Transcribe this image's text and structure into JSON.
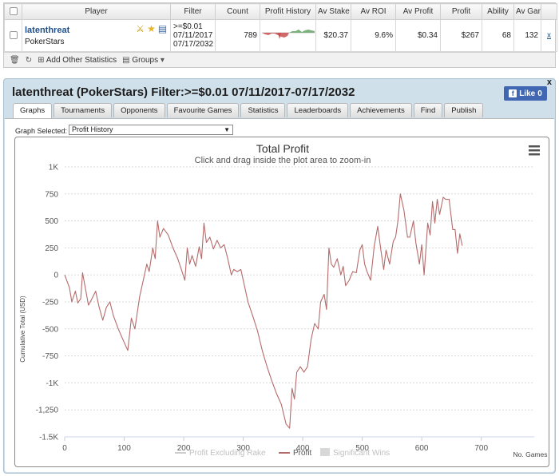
{
  "stats_table": {
    "headers": [
      "Player",
      "Filter",
      "Count",
      "Profit History",
      "Av Stake",
      "Av ROI",
      "Av Profit",
      "Profit",
      "Ability",
      "Av Game"
    ],
    "row": {
      "player_name": "latenthreat",
      "site": "PokerStars",
      "filter_lines": [
        ">=$0.01",
        "07/11/2017 -",
        "07/17/2032"
      ],
      "count": "789",
      "av_stake": "$20.37",
      "av_roi": "9.6%",
      "av_profit": "$0.34",
      "profit": "$267",
      "ability": "68",
      "av_game": "132",
      "remove_link": "x"
    },
    "footer": {
      "add_label": "Add Other Statistics",
      "groups_label": "Groups"
    }
  },
  "panel": {
    "title": "latenthreat (PokerStars) Filter:>=$0.01 07/11/2017-07/17/2032",
    "close_label": "x",
    "like_label": "Like",
    "like_count": "0",
    "tabs": [
      "Graphs",
      "Tournaments",
      "Opponents",
      "Favourite Games",
      "Statistics",
      "Leaderboards",
      "Achievements",
      "Find",
      "Publish"
    ],
    "active_tab": "Graphs",
    "graph_selected_label": "Graph Selected:",
    "graph_selected_value": "Profit History"
  },
  "colors": {
    "profit_line": "#b56b6b",
    "positive_spark": "#6ea96e",
    "negative_spark": "#c85050",
    "panel_bg": "#cfe0eb"
  },
  "chart_data": {
    "type": "line",
    "title": "Total Profit",
    "subtitle": "Click and drag inside the plot area to zoom-in",
    "ylabel": "Cumulative Total (USD)",
    "xlabel": "No. Games",
    "ylim": [
      -1500,
      1000
    ],
    "xlim": [
      0,
      789
    ],
    "y_ticks": [
      {
        "v": 1000,
        "label": "1K"
      },
      {
        "v": 750,
        "label": "750"
      },
      {
        "v": 500,
        "label": "500"
      },
      {
        "v": 250,
        "label": "250"
      },
      {
        "v": 0,
        "label": "0"
      },
      {
        "v": -250,
        "label": "-250"
      },
      {
        "v": -500,
        "label": "-500"
      },
      {
        "v": -750,
        "label": "-750"
      },
      {
        "v": -1000,
        "label": "-1K"
      },
      {
        "v": -1250,
        "label": "-1,250"
      },
      {
        "v": -1500,
        "label": "-1.5K"
      }
    ],
    "x_ticks": [
      0,
      100,
      200,
      300,
      400,
      500,
      600,
      700
    ],
    "grid": true,
    "legend": [
      "Profit Excluding Rake",
      "Profit",
      "Significant Wins"
    ],
    "series": [
      {
        "name": "Profit",
        "points": [
          [
            0,
            0
          ],
          [
            8,
            -120
          ],
          [
            12,
            -250
          ],
          [
            18,
            -150
          ],
          [
            22,
            -260
          ],
          [
            27,
            -220
          ],
          [
            30,
            20
          ],
          [
            34,
            -100
          ],
          [
            40,
            -280
          ],
          [
            45,
            -230
          ],
          [
            52,
            -150
          ],
          [
            58,
            -300
          ],
          [
            64,
            -420
          ],
          [
            70,
            -300
          ],
          [
            76,
            -250
          ],
          [
            82,
            -380
          ],
          [
            90,
            -500
          ],
          [
            98,
            -600
          ],
          [
            106,
            -700
          ],
          [
            112,
            -400
          ],
          [
            118,
            -500
          ],
          [
            126,
            -200
          ],
          [
            132,
            -50
          ],
          [
            138,
            100
          ],
          [
            142,
            30
          ],
          [
            148,
            250
          ],
          [
            152,
            150
          ],
          [
            156,
            500
          ],
          [
            160,
            350
          ],
          [
            166,
            430
          ],
          [
            174,
            370
          ],
          [
            182,
            250
          ],
          [
            190,
            150
          ],
          [
            196,
            50
          ],
          [
            202,
            -50
          ],
          [
            206,
            250
          ],
          [
            210,
            100
          ],
          [
            214,
            180
          ],
          [
            220,
            80
          ],
          [
            226,
            260
          ],
          [
            230,
            150
          ],
          [
            234,
            480
          ],
          [
            238,
            300
          ],
          [
            244,
            350
          ],
          [
            250,
            240
          ],
          [
            256,
            320
          ],
          [
            262,
            250
          ],
          [
            268,
            280
          ],
          [
            274,
            150
          ],
          [
            280,
            0
          ],
          [
            284,
            50
          ],
          [
            290,
            30
          ],
          [
            296,
            50
          ],
          [
            302,
            -100
          ],
          [
            308,
            -250
          ],
          [
            316,
            -380
          ],
          [
            324,
            -520
          ],
          [
            332,
            -700
          ],
          [
            340,
            -850
          ],
          [
            348,
            -980
          ],
          [
            356,
            -1100
          ],
          [
            364,
            -1200
          ],
          [
            372,
            -1380
          ],
          [
            378,
            -1420
          ],
          [
            382,
            -1050
          ],
          [
            386,
            -1150
          ],
          [
            390,
            -900
          ],
          [
            396,
            -850
          ],
          [
            402,
            -900
          ],
          [
            408,
            -850
          ],
          [
            414,
            -600
          ],
          [
            420,
            -450
          ],
          [
            426,
            -500
          ],
          [
            430,
            -250
          ],
          [
            436,
            -180
          ],
          [
            440,
            -320
          ],
          [
            444,
            250
          ],
          [
            448,
            100
          ],
          [
            452,
            70
          ],
          [
            458,
            150
          ],
          [
            464,
            0
          ],
          [
            468,
            80
          ],
          [
            472,
            -100
          ],
          [
            478,
            -50
          ],
          [
            484,
            30
          ],
          [
            490,
            20
          ],
          [
            496,
            230
          ],
          [
            500,
            280
          ],
          [
            504,
            100
          ],
          [
            508,
            30
          ],
          [
            514,
            -50
          ],
          [
            520,
            260
          ],
          [
            526,
            450
          ],
          [
            532,
            200
          ],
          [
            536,
            50
          ],
          [
            540,
            230
          ],
          [
            546,
            100
          ],
          [
            552,
            310
          ],
          [
            556,
            350
          ],
          [
            560,
            500
          ],
          [
            564,
            750
          ],
          [
            570,
            600
          ],
          [
            576,
            350
          ],
          [
            580,
            350
          ],
          [
            586,
            500
          ],
          [
            590,
            300
          ],
          [
            596,
            100
          ],
          [
            600,
            280
          ],
          [
            604,
            0
          ],
          [
            610,
            480
          ],
          [
            614,
            370
          ],
          [
            618,
            680
          ],
          [
            622,
            480
          ],
          [
            626,
            700
          ],
          [
            630,
            560
          ],
          [
            636,
            720
          ],
          [
            640,
            700
          ],
          [
            646,
            700
          ],
          [
            652,
            420
          ],
          [
            656,
            420
          ],
          [
            660,
            200
          ],
          [
            664,
            380
          ],
          [
            668,
            270
          ]
        ]
      }
    ]
  }
}
